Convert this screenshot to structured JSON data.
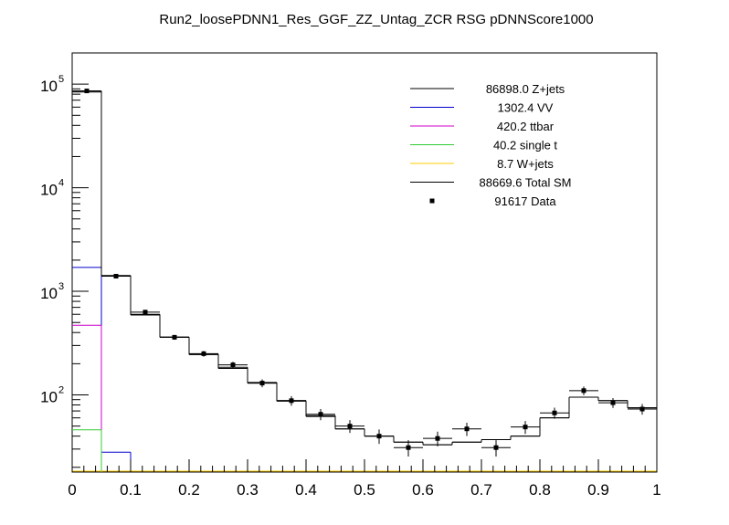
{
  "chart_data": {
    "type": "histogram",
    "title": "Run2_loosePDNN1_Res_GGF_ZZ_Untag_ZCR RSG  pDNNScore1000",
    "xlabel": "",
    "ylabel": "",
    "xlim": [
      0,
      1
    ],
    "ylim": [
      18,
      200000
    ],
    "y_scale": "log",
    "x_ticks": [
      "0",
      "0.1",
      "0.2",
      "0.3",
      "0.4",
      "0.5",
      "0.6",
      "0.7",
      "0.8",
      "0.9",
      "1"
    ],
    "y_tick_mantissa": "10",
    "y_tick_exponents": [
      "2",
      "3",
      "4",
      "5"
    ],
    "legend_position": "top-right",
    "bin_edges": [
      0,
      0.05,
      0.1,
      0.15,
      0.2,
      0.25,
      0.3,
      0.35,
      0.4,
      0.45,
      0.5,
      0.55,
      0.6,
      0.65,
      0.7,
      0.75,
      0.8,
      0.85,
      0.9,
      0.95,
      1.0
    ],
    "series": [
      {
        "name": "Z+jets",
        "yield": "86898.0",
        "legend": "86898.0 Z+jets",
        "color": "#000000",
        "values": [
          84000,
          1400,
          590,
          360,
          245,
          180,
          130,
          87,
          62,
          47,
          40,
          35,
          33,
          35,
          37,
          40,
          60,
          95,
          88,
          75
        ]
      },
      {
        "name": "VV",
        "yield": "1302.4",
        "legend": "1302.4 VV",
        "color": "#0000cc",
        "values": [
          1700,
          28,
          0,
          0,
          0,
          0,
          0,
          0,
          0,
          0,
          0,
          0,
          0,
          0,
          0,
          0,
          0,
          0,
          0,
          0
        ]
      },
      {
        "name": "ttbar",
        "yield": "420.2",
        "legend": "420.2 ttbar",
        "color": "#cc00cc",
        "values": [
          470,
          0,
          0,
          0,
          0,
          0,
          0,
          0,
          0,
          0,
          0,
          0,
          0,
          0,
          0,
          0,
          0,
          0,
          0,
          0
        ]
      },
      {
        "name": "single t",
        "yield": "40.2",
        "legend": "40.2 single t",
        "color": "#33cc33",
        "values": [
          46,
          0,
          0,
          0,
          0,
          0,
          0,
          0,
          0,
          0,
          0,
          0,
          0,
          0,
          0,
          0,
          0,
          0,
          0,
          0
        ]
      },
      {
        "name": "W+jets",
        "yield": "8.7",
        "legend": "8.7 W+jets",
        "color": "#ffcc00",
        "values": [
          0,
          0,
          0,
          0,
          0,
          0,
          0,
          0,
          0,
          0,
          0,
          0,
          0,
          0,
          0,
          0,
          0,
          0,
          0,
          0
        ]
      },
      {
        "name": "Total SM",
        "yield": "88669.6",
        "legend": "88669.6 Total SM",
        "color": "#000000",
        "values": [
          86000,
          1420,
          600,
          362,
          248,
          185,
          132,
          88,
          63,
          47,
          40,
          35,
          33,
          35,
          37,
          40,
          60,
          95,
          88,
          75
        ]
      }
    ],
    "data": {
      "name": "Data",
      "yield": "91617",
      "legend": "91617 Data",
      "values": [
        86000,
        1400,
        630,
        360,
        250,
        195,
        130,
        88,
        65,
        50,
        40,
        31,
        38,
        47,
        31,
        49,
        67,
        110,
        84,
        73
      ]
    }
  }
}
